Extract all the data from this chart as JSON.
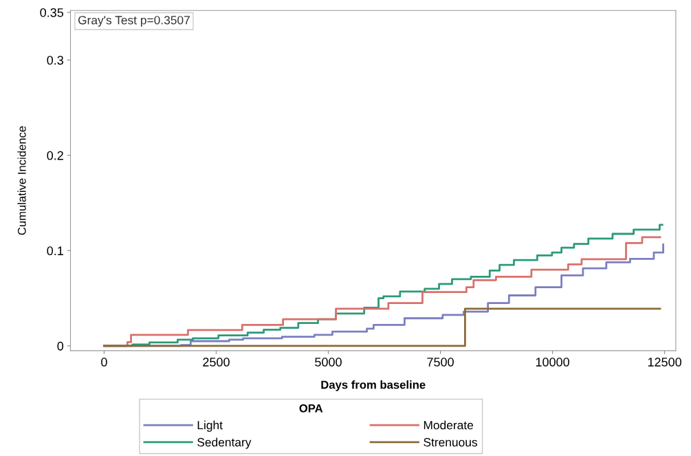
{
  "chart_data": {
    "type": "step",
    "xlabel": "Days from baseline",
    "ylabel": "Cumulative Incidence",
    "legend_title": "OPA",
    "legend": "bottom",
    "grid": false,
    "annotations": [
      "Gray's Test p=0.3507"
    ],
    "xlim": [
      -750,
      12750
    ],
    "xticks": [
      0,
      2500,
      5000,
      7500,
      10000,
      12500
    ],
    "ylim": [
      -0.005,
      0.352
    ],
    "yticks": [
      0,
      0.1,
      0.2,
      0.3,
      0.35
    ],
    "series": [
      {
        "name": "Light",
        "color": "#7b7fc0",
        "x": [
          0,
          1720,
          1930,
          2790,
          3100,
          3970,
          4690,
          5090,
          5860,
          6010,
          6700,
          7550,
          8020,
          8560,
          9030,
          9620,
          10200,
          10680,
          11200,
          11730,
          12260,
          12470
        ],
        "values": [
          0,
          0.001,
          0.005,
          0.0066,
          0.008,
          0.0096,
          0.0116,
          0.015,
          0.018,
          0.022,
          0.029,
          0.0325,
          0.036,
          0.045,
          0.053,
          0.0615,
          0.074,
          0.0814,
          0.0877,
          0.0914,
          0.098,
          0.1065
        ]
      },
      {
        "name": "Sedentary",
        "color": "#2a9a7a",
        "x": [
          0,
          630,
          1010,
          1640,
          1980,
          2550,
          3200,
          3560,
          3930,
          4330,
          4770,
          5170,
          5800,
          6120,
          6230,
          6600,
          7150,
          7470,
          7760,
          8180,
          8600,
          8820,
          9140,
          9660,
          9990,
          10200,
          10480,
          10800,
          11340,
          11810,
          12390,
          12450
        ],
        "values": [
          0,
          0.0014,
          0.0036,
          0.0065,
          0.008,
          0.011,
          0.014,
          0.017,
          0.019,
          0.024,
          0.028,
          0.034,
          0.04,
          0.05,
          0.052,
          0.057,
          0.06,
          0.065,
          0.07,
          0.0725,
          0.079,
          0.085,
          0.09,
          0.095,
          0.098,
          0.103,
          0.107,
          0.1127,
          0.1176,
          0.122,
          0.127,
          0.127
        ]
      },
      {
        "name": "Moderate",
        "color": "#d9706a",
        "x": [
          0,
          520,
          600,
          1870,
          3080,
          3990,
          5170,
          6340,
          7100,
          8080,
          8240,
          8740,
          9530,
          10350,
          10650,
          11640,
          12000,
          12400
        ],
        "values": [
          0,
          0.004,
          0.0116,
          0.0167,
          0.022,
          0.028,
          0.039,
          0.045,
          0.0565,
          0.0615,
          0.069,
          0.0725,
          0.08,
          0.0855,
          0.091,
          0.108,
          0.114,
          0.114
        ]
      },
      {
        "name": "Strenuous",
        "color": "#8b6a3a",
        "x": [
          0,
          8050,
          12400
        ],
        "values": [
          0,
          0.039,
          0.039
        ]
      }
    ]
  }
}
